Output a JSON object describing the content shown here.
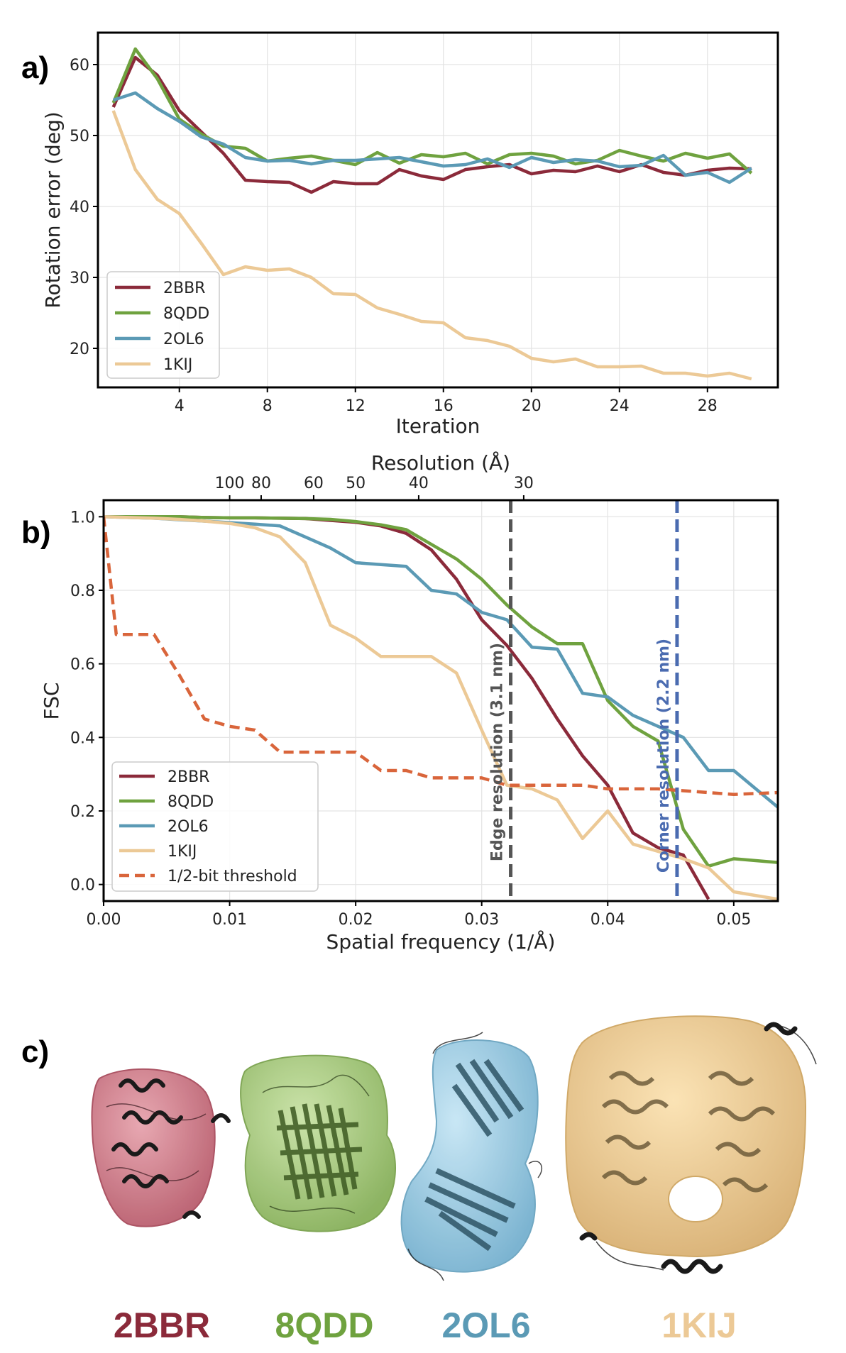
{
  "panels": {
    "a": "a)",
    "b": "b)",
    "c": "c)"
  },
  "colors": {
    "2BBR": "#8b2a3a",
    "8QDD": "#6fa23f",
    "2OL6": "#5b9ab5",
    "1KIJ": "#ecc996",
    "threshold": "#d9653b",
    "edge": "#555555",
    "corner": "#4a6bb0"
  },
  "chart_data": [
    {
      "type": "line",
      "xlabel": "Iteration",
      "ylabel": "Rotation error (deg)",
      "xlim": [
        0.3,
        31.2
      ],
      "ylim": [
        14.5,
        64.5
      ],
      "xticks": [
        4,
        8,
        12,
        16,
        20,
        24,
        28
      ],
      "yticks": [
        20,
        30,
        40,
        50,
        60
      ],
      "grid": true,
      "legend_position": "lower-left",
      "x": [
        1,
        2,
        3,
        4,
        5,
        6,
        7,
        8,
        9,
        10,
        11,
        12,
        13,
        14,
        15,
        16,
        17,
        18,
        19,
        20,
        21,
        22,
        23,
        24,
        25,
        26,
        27,
        28,
        29,
        30
      ],
      "series": [
        {
          "name": "2BBR",
          "color": "#8b2a3a",
          "values": [
            54.0,
            61.0,
            58.5,
            53.5,
            50.5,
            47.5,
            43.7,
            43.5,
            43.4,
            42.0,
            43.5,
            43.2,
            43.2,
            45.2,
            44.3,
            43.8,
            45.2,
            45.6,
            45.9,
            44.6,
            45.1,
            44.9,
            45.7,
            44.9,
            45.9,
            44.8,
            44.4,
            45.1,
            45.4,
            45.3
          ]
        },
        {
          "name": "8QDD",
          "color": "#6fa23f",
          "values": [
            54.6,
            62.2,
            58.0,
            52.3,
            50.2,
            48.5,
            48.2,
            46.4,
            46.8,
            47.1,
            46.5,
            45.9,
            47.6,
            46.1,
            47.3,
            47.0,
            47.5,
            46.0,
            47.3,
            47.5,
            47.1,
            46.0,
            46.5,
            47.9,
            47.1,
            46.4,
            47.5,
            46.8,
            47.4,
            44.7
          ]
        },
        {
          "name": "2OL6",
          "color": "#5b9ab5",
          "values": [
            55.0,
            56.0,
            53.8,
            52.0,
            49.8,
            48.8,
            46.9,
            46.4,
            46.5,
            46.0,
            46.5,
            46.5,
            46.7,
            46.9,
            46.3,
            45.7,
            45.9,
            46.7,
            45.5,
            46.9,
            46.2,
            46.6,
            46.4,
            45.6,
            45.8,
            47.2,
            44.4,
            44.8,
            43.4,
            45.4
          ]
        },
        {
          "name": "1KIJ",
          "color": "#ecc996",
          "values": [
            53.5,
            45.2,
            41.0,
            39.0,
            34.8,
            30.4,
            31.5,
            31.0,
            31.2,
            30.0,
            27.7,
            27.6,
            25.7,
            24.8,
            23.8,
            23.6,
            21.5,
            21.1,
            20.3,
            18.6,
            18.1,
            18.5,
            17.4,
            17.4,
            17.5,
            16.5,
            16.5,
            16.1,
            16.5,
            15.7
          ]
        }
      ]
    },
    {
      "type": "line",
      "xlabel": "Spatial frequency (1/Å)",
      "ylabel": "FSC",
      "top_xlabel": "Resolution (Å)",
      "xlim": [
        0.0,
        0.0535
      ],
      "ylim": [
        -0.045,
        1.045
      ],
      "xticks": [
        0.0,
        0.01,
        0.02,
        0.03,
        0.04,
        0.05
      ],
      "xtick_labels": [
        "0.00",
        "0.01",
        "0.02",
        "0.03",
        "0.04",
        "0.05"
      ],
      "yticks": [
        0.0,
        0.2,
        0.4,
        0.6,
        0.8,
        1.0
      ],
      "ytick_labels": [
        "0.0",
        "0.2",
        "0.4",
        "0.6",
        "0.8",
        "1.0"
      ],
      "top_ticks": [
        {
          "label": "100",
          "resolution": 100
        },
        {
          "label": "80",
          "resolution": 80
        },
        {
          "label": "60",
          "resolution": 60
        },
        {
          "label": "50",
          "resolution": 50
        },
        {
          "label": "40",
          "resolution": 40
        },
        {
          "label": "30",
          "resolution": 30
        }
      ],
      "grid": true,
      "legend_position": "lower-left",
      "series": [
        {
          "name": "2BBR",
          "color": "#8b2a3a",
          "dash": false,
          "x": [
            0.0,
            0.002,
            0.004,
            0.006,
            0.008,
            0.01,
            0.012,
            0.014,
            0.016,
            0.018,
            0.02,
            0.022,
            0.024,
            0.026,
            0.028,
            0.03,
            0.032,
            0.034,
            0.036,
            0.038,
            0.04,
            0.042,
            0.044,
            0.046,
            0.048
          ],
          "y": [
            1.0,
            1.0,
            1.0,
            1.0,
            0.998,
            0.997,
            0.997,
            0.996,
            0.995,
            0.99,
            0.985,
            0.975,
            0.955,
            0.91,
            0.83,
            0.72,
            0.65,
            0.56,
            0.45,
            0.35,
            0.27,
            0.14,
            0.1,
            0.08,
            -0.04
          ]
        },
        {
          "name": "8QDD",
          "color": "#6fa23f",
          "dash": false,
          "x": [
            0.0,
            0.002,
            0.004,
            0.006,
            0.008,
            0.01,
            0.012,
            0.014,
            0.016,
            0.018,
            0.02,
            0.022,
            0.024,
            0.026,
            0.028,
            0.03,
            0.032,
            0.034,
            0.036,
            0.038,
            0.04,
            0.042,
            0.044,
            0.046,
            0.048,
            0.05,
            0.0535
          ],
          "y": [
            1.0,
            1.0,
            1.0,
            1.0,
            0.998,
            0.997,
            0.997,
            0.996,
            0.995,
            0.993,
            0.987,
            0.978,
            0.965,
            0.925,
            0.885,
            0.83,
            0.76,
            0.7,
            0.655,
            0.655,
            0.5,
            0.43,
            0.39,
            0.15,
            0.05,
            0.07,
            0.06
          ]
        },
        {
          "name": "2OL6",
          "color": "#5b9ab5",
          "dash": false,
          "x": [
            0.0,
            0.002,
            0.004,
            0.006,
            0.008,
            0.01,
            0.012,
            0.014,
            0.016,
            0.018,
            0.02,
            0.022,
            0.024,
            0.026,
            0.028,
            0.03,
            0.032,
            0.034,
            0.036,
            0.038,
            0.04,
            0.042,
            0.044,
            0.046,
            0.048,
            0.05,
            0.0535
          ],
          "y": [
            1.0,
            0.998,
            0.996,
            0.992,
            0.988,
            0.984,
            0.98,
            0.975,
            0.945,
            0.915,
            0.875,
            0.87,
            0.865,
            0.8,
            0.79,
            0.74,
            0.72,
            0.645,
            0.64,
            0.52,
            0.51,
            0.46,
            0.43,
            0.4,
            0.31,
            0.31,
            0.21
          ]
        },
        {
          "name": "1KIJ",
          "color": "#ecc996",
          "dash": false,
          "x": [
            0.0,
            0.002,
            0.004,
            0.006,
            0.008,
            0.01,
            0.012,
            0.014,
            0.016,
            0.018,
            0.02,
            0.022,
            0.024,
            0.026,
            0.028,
            0.03,
            0.032,
            0.034,
            0.036,
            0.038,
            0.04,
            0.042,
            0.044,
            0.046,
            0.048,
            0.05,
            0.0535
          ],
          "y": [
            1.0,
            0.998,
            0.996,
            0.993,
            0.988,
            0.982,
            0.97,
            0.945,
            0.875,
            0.705,
            0.67,
            0.62,
            0.62,
            0.62,
            0.575,
            0.42,
            0.27,
            0.26,
            0.23,
            0.125,
            0.2,
            0.11,
            0.09,
            0.07,
            0.045,
            -0.02,
            -0.04
          ]
        },
        {
          "name": "1/2-bit threshold",
          "color": "#d9653b",
          "dash": true,
          "x": [
            0.0,
            0.001,
            0.002,
            0.004,
            0.006,
            0.008,
            0.01,
            0.012,
            0.014,
            0.016,
            0.018,
            0.02,
            0.022,
            0.024,
            0.026,
            0.028,
            0.03,
            0.032,
            0.034,
            0.036,
            0.038,
            0.04,
            0.042,
            0.044,
            0.046,
            0.048,
            0.05,
            0.0535
          ],
          "y": [
            1.0,
            0.68,
            0.68,
            0.68,
            0.57,
            0.45,
            0.43,
            0.42,
            0.36,
            0.36,
            0.36,
            0.36,
            0.31,
            0.31,
            0.29,
            0.29,
            0.29,
            0.27,
            0.27,
            0.27,
            0.27,
            0.26,
            0.26,
            0.26,
            0.255,
            0.25,
            0.245,
            0.25
          ]
        }
      ],
      "vlines": [
        {
          "x": 0.0323,
          "label": "Edge resolution (3.1 nm)",
          "color": "#555555"
        },
        {
          "x": 0.0455,
          "label": "Corner resolution (2.2 nm)",
          "color": "#4a6bb0"
        }
      ]
    }
  ],
  "structures": [
    {
      "label": "2BBR",
      "color": "#8b2a3a"
    },
    {
      "label": "8QDD",
      "color": "#6fa23f"
    },
    {
      "label": "2OL6",
      "color": "#5b9ab5"
    },
    {
      "label": "1KIJ",
      "color": "#ecc996"
    }
  ]
}
